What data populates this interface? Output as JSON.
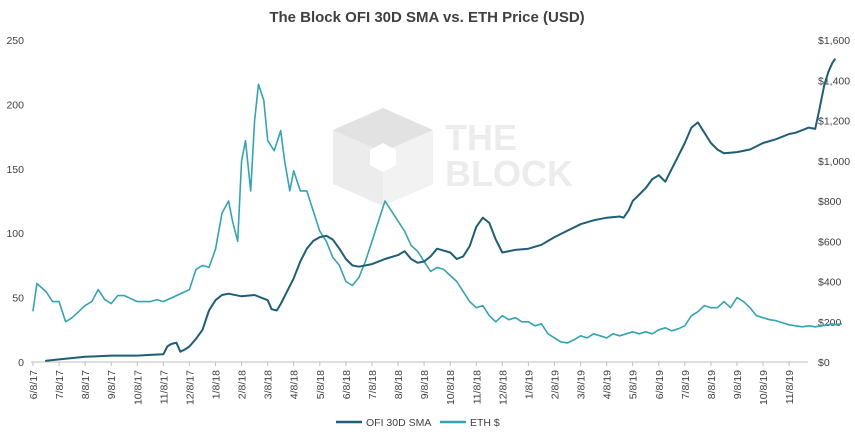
{
  "chart_data": {
    "type": "line",
    "title": "The Block OFI 30D SMA vs. ETH Price (USD)",
    "left_axis": {
      "min": 0,
      "max": 250,
      "ticks": [
        "0",
        "50",
        "100",
        "150",
        "200",
        "250"
      ]
    },
    "right_axis": {
      "min": 0,
      "max": 1600,
      "ticks": [
        "$0",
        "$200",
        "$400",
        "$600",
        "$800",
        "$1,000",
        "$1,200",
        "$1,400",
        "$1,600"
      ]
    },
    "x_tick_labels": [
      "6/8/17",
      "7/8/17",
      "8/8/17",
      "9/8/17",
      "10/8/17",
      "11/8/17",
      "12/8/17",
      "1/8/18",
      "2/8/18",
      "3/8/18",
      "4/8/18",
      "5/8/18",
      "6/8/18",
      "7/8/18",
      "8/8/18",
      "9/8/18",
      "10/8/18",
      "11/8/18",
      "12/8/18",
      "1/8/19",
      "2/8/19",
      "3/8/19",
      "4/8/19",
      "5/8/19",
      "6/8/19",
      "7/8/19",
      "8/8/19",
      "9/8/19",
      "10/8/19",
      "11/8/19"
    ],
    "series": [
      {
        "name": "OFI 30D SMA",
        "axis": "left",
        "color": "#1d5e78",
        "points": [
          [
            1,
            1
          ],
          [
            2,
            2
          ],
          [
            4,
            4
          ],
          [
            5,
            4.5
          ],
          [
            6,
            5
          ],
          [
            8,
            5
          ],
          [
            9,
            5.5
          ],
          [
            10,
            6
          ],
          [
            10.3,
            12
          ],
          [
            10.6,
            14
          ],
          [
            11,
            15
          ],
          [
            11.3,
            8
          ],
          [
            11.7,
            10
          ],
          [
            12,
            12
          ],
          [
            12.5,
            18
          ],
          [
            13,
            25
          ],
          [
            13.5,
            40
          ],
          [
            14,
            48
          ],
          [
            14.5,
            52
          ],
          [
            15,
            53
          ],
          [
            16,
            51
          ],
          [
            17,
            52
          ],
          [
            18,
            48
          ],
          [
            18.3,
            41
          ],
          [
            18.7,
            40
          ],
          [
            19,
            45
          ],
          [
            19.5,
            55
          ],
          [
            20,
            65
          ],
          [
            20.5,
            78
          ],
          [
            21,
            88
          ],
          [
            21.5,
            94
          ],
          [
            22,
            97
          ],
          [
            22.5,
            98
          ],
          [
            23,
            95
          ],
          [
            23.5,
            88
          ],
          [
            24,
            80
          ],
          [
            24.5,
            75
          ],
          [
            25,
            74
          ],
          [
            26,
            76
          ],
          [
            27,
            80
          ],
          [
            28,
            83
          ],
          [
            28.5,
            86
          ],
          [
            29,
            80
          ],
          [
            29.5,
            77
          ],
          [
            30,
            78
          ],
          [
            30.5,
            82
          ],
          [
            31,
            88
          ],
          [
            32,
            85
          ],
          [
            32.5,
            80
          ],
          [
            33,
            82
          ],
          [
            33.5,
            90
          ],
          [
            34,
            105
          ],
          [
            34.5,
            112
          ],
          [
            35,
            108
          ],
          [
            35.5,
            95
          ],
          [
            36,
            85
          ],
          [
            37,
            87
          ],
          [
            38,
            88
          ],
          [
            39,
            91
          ],
          [
            40,
            97
          ],
          [
            41,
            102
          ],
          [
            42,
            107
          ],
          [
            43,
            110
          ],
          [
            44,
            112
          ],
          [
            45,
            113
          ],
          [
            45.3,
            112
          ],
          [
            45.7,
            118
          ],
          [
            46,
            125
          ],
          [
            46.5,
            130
          ],
          [
            47,
            135
          ],
          [
            47.5,
            142
          ],
          [
            48,
            145
          ],
          [
            48.5,
            140
          ],
          [
            49,
            150
          ],
          [
            49.5,
            160
          ],
          [
            50,
            170
          ],
          [
            50.5,
            182
          ],
          [
            51,
            186
          ],
          [
            51.5,
            178
          ],
          [
            52,
            170
          ],
          [
            52.5,
            165
          ],
          [
            53,
            162
          ],
          [
            54,
            163
          ],
          [
            55,
            165
          ],
          [
            56,
            170
          ],
          [
            57,
            173
          ],
          [
            58,
            177
          ],
          [
            58.5,
            178
          ],
          [
            59,
            180
          ],
          [
            59.5,
            182
          ],
          [
            60,
            181
          ],
          [
            60.3,
            195
          ],
          [
            60.7,
            215
          ],
          [
            61,
            225
          ],
          [
            61.3,
            232
          ],
          [
            61.5,
            235
          ]
        ]
      },
      {
        "name": "ETH $",
        "axis": "right",
        "color": "#33a4b3",
        "points": [
          [
            0,
            255
          ],
          [
            0.3,
            390
          ],
          [
            1,
            350
          ],
          [
            1.5,
            300
          ],
          [
            2,
            300
          ],
          [
            2.5,
            200
          ],
          [
            3,
            220
          ],
          [
            3.5,
            250
          ],
          [
            4,
            280
          ],
          [
            4.5,
            300
          ],
          [
            5,
            360
          ],
          [
            5.5,
            310
          ],
          [
            6,
            290
          ],
          [
            6.5,
            330
          ],
          [
            7,
            330
          ],
          [
            8,
            300
          ],
          [
            9,
            300
          ],
          [
            9.5,
            310
          ],
          [
            10,
            300
          ],
          [
            11,
            330
          ],
          [
            12,
            360
          ],
          [
            12.5,
            460
          ],
          [
            13,
            480
          ],
          [
            13.5,
            470
          ],
          [
            14,
            560
          ],
          [
            14.5,
            740
          ],
          [
            15,
            800
          ],
          [
            15.3,
            700
          ],
          [
            15.7,
            600
          ],
          [
            16,
            1000
          ],
          [
            16.3,
            1100
          ],
          [
            16.7,
            850
          ],
          [
            17,
            1200
          ],
          [
            17.3,
            1380
          ],
          [
            17.7,
            1300
          ],
          [
            18,
            1100
          ],
          [
            18.5,
            1050
          ],
          [
            19,
            1150
          ],
          [
            19.3,
            1000
          ],
          [
            19.7,
            850
          ],
          [
            20,
            950
          ],
          [
            20.5,
            850
          ],
          [
            21,
            850
          ],
          [
            21.5,
            750
          ],
          [
            22,
            650
          ],
          [
            22.5,
            600
          ],
          [
            23,
            520
          ],
          [
            23.5,
            480
          ],
          [
            24,
            400
          ],
          [
            24.5,
            380
          ],
          [
            25,
            420
          ],
          [
            25.5,
            500
          ],
          [
            26,
            600
          ],
          [
            26.5,
            700
          ],
          [
            27,
            800
          ],
          [
            27.5,
            750
          ],
          [
            28,
            700
          ],
          [
            28.5,
            650
          ],
          [
            29,
            580
          ],
          [
            29.5,
            550
          ],
          [
            30,
            500
          ],
          [
            30.5,
            450
          ],
          [
            31,
            470
          ],
          [
            31.5,
            460
          ],
          [
            32,
            430
          ],
          [
            32.5,
            400
          ],
          [
            33,
            350
          ],
          [
            33.5,
            300
          ],
          [
            34,
            270
          ],
          [
            34.5,
            280
          ],
          [
            35,
            230
          ],
          [
            35.5,
            200
          ],
          [
            36,
            230
          ],
          [
            36.5,
            210
          ],
          [
            37,
            220
          ],
          [
            37.5,
            200
          ],
          [
            38,
            200
          ],
          [
            38.5,
            180
          ],
          [
            39,
            190
          ],
          [
            39.5,
            140
          ],
          [
            40,
            120
          ],
          [
            40.5,
            100
          ],
          [
            41,
            95
          ],
          [
            41.5,
            110
          ],
          [
            42,
            130
          ],
          [
            42.5,
            120
          ],
          [
            43,
            140
          ],
          [
            43.5,
            130
          ],
          [
            44,
            120
          ],
          [
            44.5,
            140
          ],
          [
            45,
            130
          ],
          [
            45.5,
            140
          ],
          [
            46,
            150
          ],
          [
            46.5,
            140
          ],
          [
            47,
            150
          ],
          [
            47.5,
            140
          ],
          [
            48,
            160
          ],
          [
            48.5,
            170
          ],
          [
            49,
            155
          ],
          [
            49.5,
            165
          ],
          [
            50,
            180
          ],
          [
            50.5,
            230
          ],
          [
            51,
            250
          ],
          [
            51.5,
            280
          ],
          [
            52,
            270
          ],
          [
            52.5,
            270
          ],
          [
            53,
            300
          ],
          [
            53.5,
            270
          ],
          [
            54,
            320
          ],
          [
            54.5,
            300
          ],
          [
            55,
            270
          ],
          [
            55.5,
            230
          ],
          [
            56,
            220
          ],
          [
            56.5,
            210
          ],
          [
            57,
            205
          ],
          [
            57.5,
            195
          ],
          [
            58,
            185
          ],
          [
            58.5,
            180
          ],
          [
            59,
            175
          ],
          [
            59.5,
            180
          ],
          [
            60,
            175
          ],
          [
            60.5,
            180
          ],
          [
            61,
            185
          ],
          [
            61.3,
            190
          ],
          [
            61.5,
            185
          ],
          [
            62,
            190
          ]
        ]
      }
    ],
    "legend": {
      "placement": "bottom",
      "entries": [
        "OFI 30D SMA",
        "ETH $"
      ]
    }
  },
  "watermark": {
    "line1": "THE",
    "line2": "BLOCK"
  },
  "colors": {
    "ofi": "#1d5e78",
    "eth": "#33a4b3",
    "axis": "#bfbfbf",
    "watermark": "#e5e5e5"
  }
}
